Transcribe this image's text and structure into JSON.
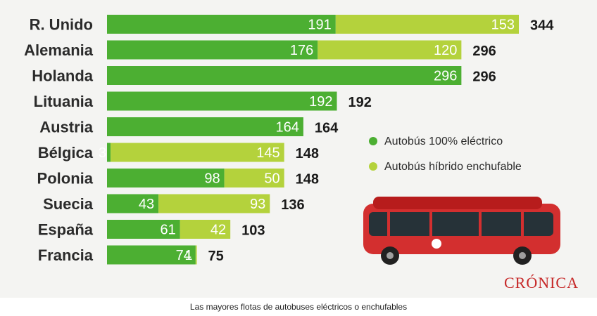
{
  "colors": {
    "electric": "#4caf32",
    "hybrid": "#b4d23c"
  },
  "chart_data": {
    "type": "bar",
    "orientation": "horizontal",
    "stacked": true,
    "categories": [
      "R. Unido",
      "Alemania",
      "Holanda",
      "Lituania",
      "Austria",
      "Bélgica",
      "Polonia",
      "Suecia",
      "España",
      "Francia"
    ],
    "series": [
      {
        "name": "Autobús 100% eléctrico",
        "color": "#4caf32",
        "values": [
          191,
          176,
          296,
          192,
          164,
          3,
          98,
          43,
          61,
          74
        ]
      },
      {
        "name": "Autobús híbrido enchufable",
        "color": "#b4d23c",
        "values": [
          153,
          120,
          0,
          0,
          0,
          145,
          50,
          93,
          42,
          1
        ]
      }
    ],
    "totals": [
      344,
      296,
      296,
      192,
      164,
      148,
      148,
      136,
      103,
      75
    ],
    "xlim": [
      0,
      344
    ],
    "legend_position": "right"
  },
  "branding": {
    "logo": "CRÓNICA"
  },
  "caption": "Las mayores flotas de autobuses eléctricos o enchufables"
}
